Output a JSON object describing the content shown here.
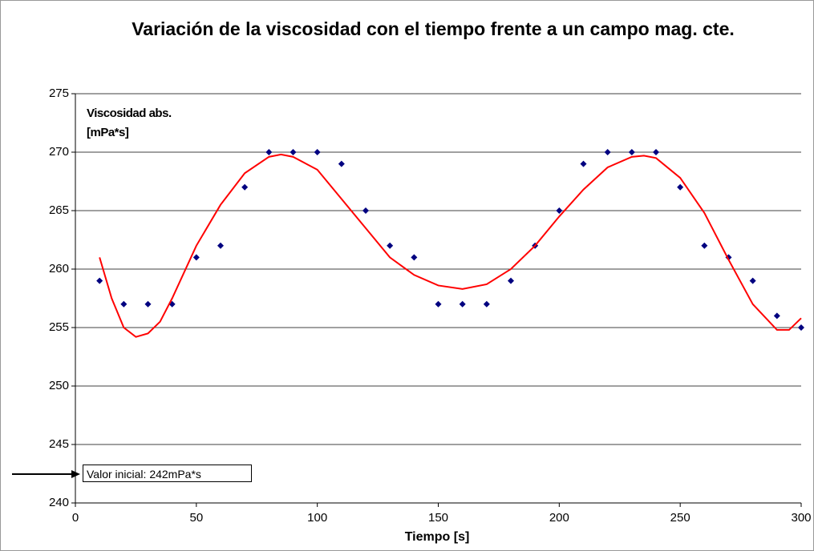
{
  "chart_data": {
    "type": "scatter",
    "title": "Variación de la viscosidad con el tiempo frente a un campo mag. cte.",
    "x_label": "Tiempo [s]",
    "y_label": "Viscosidad abs.[mPa*s]",
    "annotation": "Valor inicial: 242mPa*s",
    "xlim": [
      0,
      300
    ],
    "xticks": [
      0,
      50,
      100,
      150,
      200,
      250,
      300
    ],
    "ylim": [
      240,
      275
    ],
    "yticks": [
      240,
      245,
      250,
      255,
      260,
      265,
      270,
      275
    ],
    "grid": true,
    "series": [
      {
        "color": "#000080",
        "marker": "diamond",
        "x": [
          10,
          20,
          30,
          40,
          50,
          60,
          70,
          80,
          90,
          100,
          110,
          120,
          130,
          140,
          150,
          160,
          170,
          180,
          190,
          200,
          210,
          220,
          230,
          240,
          250,
          260,
          270,
          280,
          290,
          300
        ],
        "values": [
          259,
          257,
          257,
          257,
          261,
          262,
          267,
          270,
          270,
          270,
          269,
          265,
          262,
          261,
          257,
          257,
          257,
          259,
          262,
          265,
          269,
          270,
          270,
          270,
          267,
          262,
          261,
          259,
          256,
          255
        ]
      },
      {
        "color": "#ff0000",
        "marker": "line",
        "x": [
          10,
          15,
          20,
          25,
          30,
          35,
          40,
          50,
          60,
          70,
          80,
          85,
          90,
          100,
          110,
          120,
          130,
          140,
          150,
          160,
          170,
          180,
          190,
          200,
          210,
          220,
          230,
          235,
          240,
          250,
          260,
          270,
          280,
          290,
          295,
          300
        ],
        "values": [
          261,
          257.5,
          255,
          254.2,
          254.5,
          255.5,
          257.5,
          262,
          265.5,
          268.2,
          269.6,
          269.8,
          269.6,
          268.5,
          266,
          263.5,
          261,
          259.5,
          258.6,
          258.3,
          258.7,
          260,
          262,
          264.5,
          266.8,
          268.7,
          269.6,
          269.7,
          269.5,
          267.8,
          264.8,
          260.8,
          257,
          254.8,
          254.8,
          255.8
        ]
      }
    ]
  }
}
